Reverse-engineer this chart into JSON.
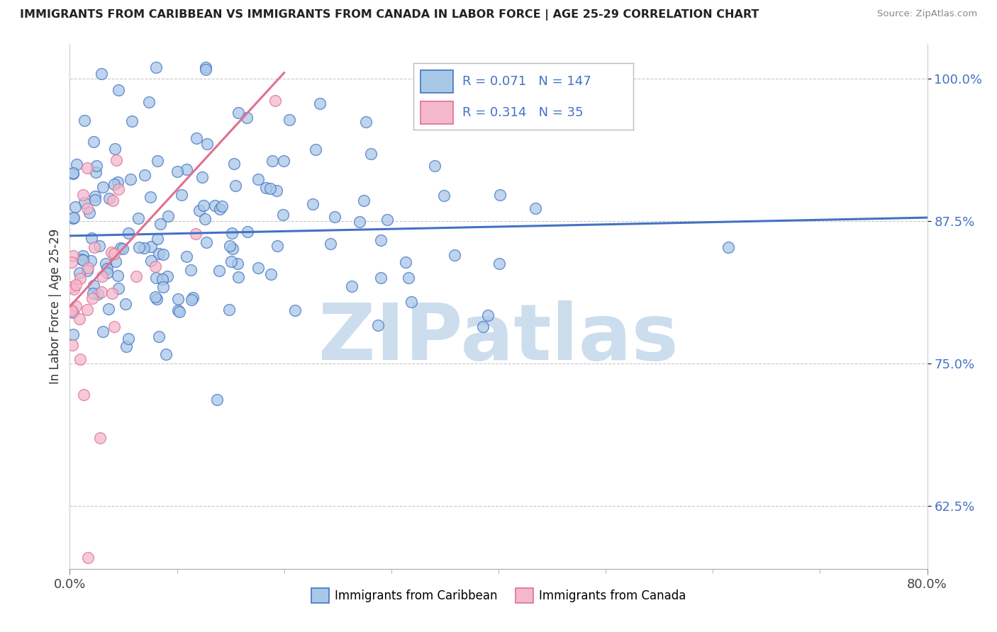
{
  "title": "IMMIGRANTS FROM CARIBBEAN VS IMMIGRANTS FROM CANADA IN LABOR FORCE | AGE 25-29 CORRELATION CHART",
  "source": "Source: ZipAtlas.com",
  "ylabel": "In Labor Force | Age 25-29",
  "yticks": [
    62.5,
    75.0,
    87.5,
    100.0
  ],
  "xlim": [
    0.0,
    80.0
  ],
  "ylim": [
    57.0,
    103.0
  ],
  "legend_label1": "Immigrants from Caribbean",
  "legend_label2": "Immigrants from Canada",
  "r1": 0.071,
  "n1": 147,
  "r2": 0.314,
  "n2": 35,
  "color_blue_fill": "#a8c8e8",
  "color_pink_fill": "#f4b8cc",
  "color_blue_edge": "#4472c4",
  "color_pink_edge": "#e07090",
  "color_blue_line": "#4472c4",
  "color_pink_line": "#e07090",
  "watermark": "ZIPatlas",
  "watermark_color": "#ccdded",
  "background": "#ffffff",
  "blue_line_x0": 0.0,
  "blue_line_x1": 80.0,
  "blue_line_y0": 86.2,
  "blue_line_y1": 87.8,
  "pink_line_x0": 0.0,
  "pink_line_x1": 20.0,
  "pink_line_y0": 80.0,
  "pink_line_y1": 100.5
}
